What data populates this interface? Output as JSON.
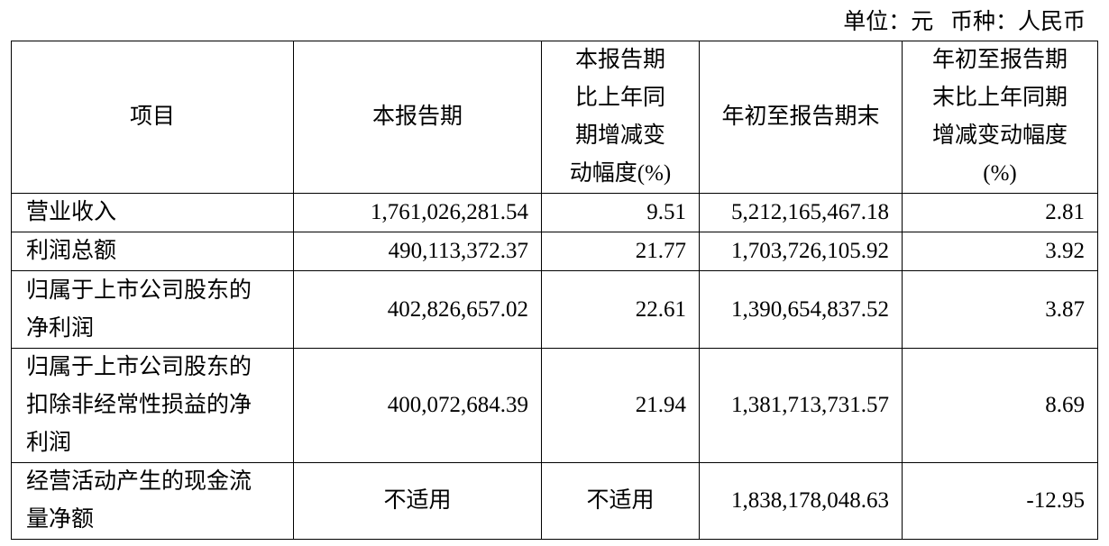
{
  "unit_note": "单位：元   币种：人民币",
  "table": {
    "headers": [
      "项目",
      "本报告期",
      "本报告期\n比上年同\n期增减变\n动幅度(%)",
      "年初至报告期末",
      "年初至报告期\n末比上年同期\n增减变动幅度\n(%)"
    ],
    "rows": [
      [
        "营业收入",
        "1,761,026,281.54",
        "9.51",
        "5,212,165,467.18",
        "2.81"
      ],
      [
        "利润总额",
        "490,113,372.37",
        "21.77",
        "1,703,726,105.92",
        "3.92"
      ],
      [
        "归属于上市公司股东的\n净利润",
        "402,826,657.02",
        "22.61",
        "1,390,654,837.52",
        "3.87"
      ],
      [
        "归属于上市公司股东的\n扣除非经常性损益的净\n利润",
        "400,072,684.39",
        "21.94",
        "1,381,713,731.57",
        "8.69"
      ],
      [
        "经营活动产生的现金流\n量净额",
        "不适用",
        "不适用",
        "1,838,178,048.63",
        "-12.95"
      ]
    ]
  }
}
